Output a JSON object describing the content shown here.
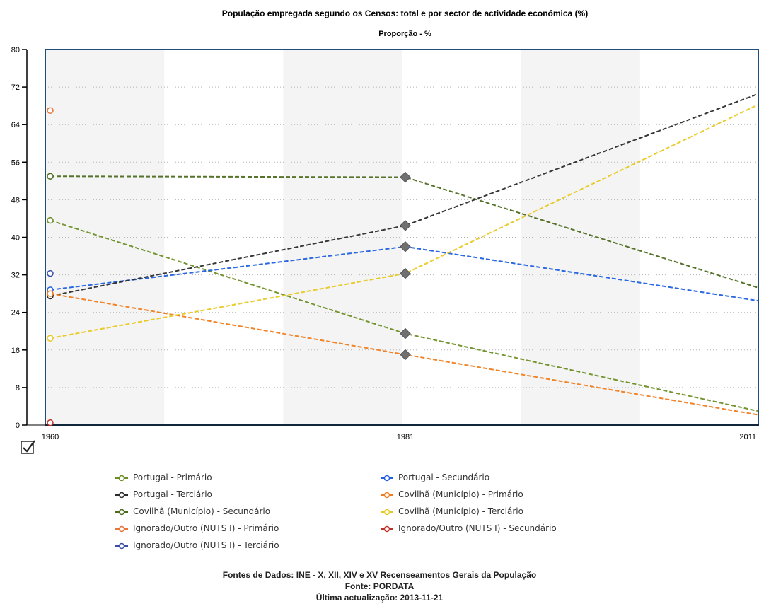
{
  "chart_data": {
    "type": "line",
    "title": "População empregada segundo os Censos: total e por sector de actividade económica (%)",
    "subtitle": "Proporção - %",
    "x": [
      "1960",
      "1981",
      "2011"
    ],
    "ylim": [
      0,
      80
    ],
    "yticks": [
      0,
      8,
      16,
      24,
      32,
      40,
      48,
      56,
      64,
      72,
      80
    ],
    "grid": "horizontal dotted, alternating vertical bands",
    "legend_position": "bottom",
    "series": [
      {
        "name": "Portugal - Primário",
        "color": "#6b8e23",
        "values": [
          43.6,
          19.5,
          3.0
        ]
      },
      {
        "name": "Portugal - Secundário",
        "color": "#1f5fe0",
        "values": [
          28.8,
          38.0,
          26.5
        ]
      },
      {
        "name": "Portugal - Terciário",
        "color": "#2b2b2b",
        "values": [
          27.5,
          42.5,
          70.5
        ]
      },
      {
        "name": "Covilhã (Município) - Primário",
        "color": "#f07c1e",
        "values": [
          28.0,
          15.0,
          2.2
        ]
      },
      {
        "name": "Covilhã (Município) - Secundário",
        "color": "#4d6b1f",
        "values": [
          53.0,
          52.8,
          29.3
        ]
      },
      {
        "name": "Covilhã (Município) - Terciário",
        "color": "#e8c820",
        "values": [
          18.5,
          32.3,
          68.2
        ]
      },
      {
        "name": "Ignorado/Outro (NUTS I) - Primário",
        "color": "#e8743a",
        "values": [
          67.0,
          null,
          null
        ]
      },
      {
        "name": "Ignorado/Outro (NUTS I) - Secundário",
        "color": "#c0302a",
        "values": [
          0.5,
          null,
          null
        ]
      },
      {
        "name": "Ignorado/Outro (NUTS I) - Terciário",
        "color": "#3a4ea8",
        "values": [
          32.3,
          null,
          null
        ]
      }
    ]
  },
  "footer": {
    "sources": "Fontes de Dados: INE - X, XII, XIV e XV Recenseamentos Gerais da População",
    "source": "Fonte: PORDATA",
    "updated": "Última actualização: 2013-11-21"
  }
}
